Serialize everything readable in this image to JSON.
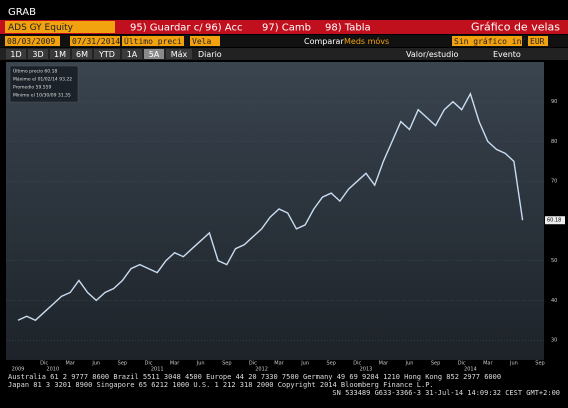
{
  "header": {
    "title": "GRAB"
  },
  "toolbar": {
    "security": "ADS GY Equity",
    "menus": [
      "95) Guardar c/",
      "96) Acc",
      "97) Camb",
      "98) Tabla"
    ],
    "chart_name": "Gráfico de velas",
    "start_date": "08/03/2009",
    "end_date": "07/31/2014",
    "field": "Último preci",
    "style": "Vela",
    "compare": "Comparar",
    "moving_avg": "Meds móvs",
    "lower_chart": "Sin gráfico infer",
    "currency": "EUR",
    "periods": [
      "1D",
      "3D",
      "1M",
      "6M",
      "YTD",
      "1A",
      "5A",
      "Máx"
    ],
    "selected_period": "5A",
    "frequency": "Diario",
    "value_study": "Valor/estudio",
    "event": "Evento"
  },
  "chart_data": {
    "type": "line",
    "color": "#c9dcf0",
    "legend": [
      "Último precio 60.18",
      "Máximo el 01/02/14 93.22",
      "Promedio 59.559",
      "Mínimo el 10/30/09 31.35"
    ],
    "categories": [
      null,
      null,
      null,
      "Dic",
      null,
      null,
      "Mar",
      null,
      null,
      "Jun",
      null,
      null,
      "Sep",
      null,
      null,
      "Dic",
      null,
      null,
      "Mar",
      null,
      null,
      "Jun",
      null,
      null,
      "Sep",
      null,
      null,
      "Dic",
      null,
      null,
      "Mar",
      null,
      null,
      "Jun",
      null,
      null,
      "Sep",
      null,
      null,
      "Dic",
      null,
      null,
      "Mar",
      null,
      null,
      "Jun",
      null,
      null,
      "Sep",
      null,
      null,
      "Dic",
      null,
      null,
      "Mar",
      null,
      null,
      "Jun",
      null,
      null,
      "Sep"
    ],
    "year_labels": [
      {
        "index": 0,
        "label": "2009"
      },
      {
        "index": 4,
        "label": "2010"
      },
      {
        "index": 16,
        "label": "2011"
      },
      {
        "index": 28,
        "label": "2012"
      },
      {
        "index": 40,
        "label": "2013"
      },
      {
        "index": 52,
        "label": "2014"
      }
    ],
    "values": [
      35,
      36,
      35,
      37,
      39,
      41,
      42,
      45,
      42,
      40,
      42,
      43,
      45,
      48,
      49,
      48,
      47,
      50,
      52,
      51,
      53,
      55,
      57,
      50,
      49,
      53,
      54,
      56,
      58,
      61,
      63,
      62,
      58,
      59,
      63,
      66,
      67,
      65,
      68,
      70,
      72,
      69,
      75,
      80,
      85,
      83,
      88,
      86,
      84,
      88,
      90,
      88,
      92,
      85,
      80,
      78,
      77,
      75,
      60.18,
      null,
      null
    ],
    "ylim": [
      25,
      100
    ],
    "yticks": [
      30,
      40,
      50,
      70,
      80,
      90
    ],
    "grid": true
  },
  "footer": {
    "lines": [
      "Australia 61 2 9777 8600 Brazil 5511 3048 4500 Europe 44 20 7330 7500 Germany 49 69 9204 1210 Hong Kong 852 2977 6000",
      "Japan 81 3 3201 8900       Singapore 65 6212 1000       U.S. 1 212 318 2000       Copyright 2014 Bloomberg Finance L.P.",
      "SN 533489 G633-3366-3 31-Jul-14 14:09:32 CEST GMT+2:00"
    ]
  }
}
